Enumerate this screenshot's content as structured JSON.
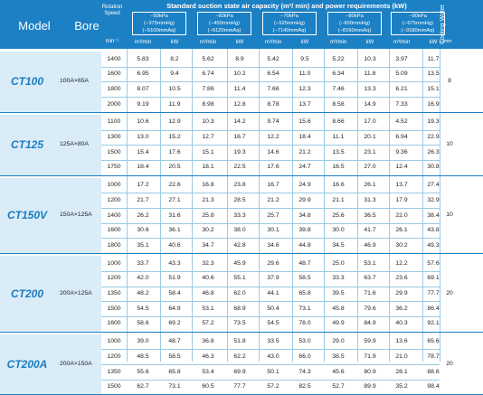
{
  "header": {
    "model": "Model",
    "bore": "Bore",
    "rotation_speed": "Rotation Speed",
    "speed_unit": "min⁻¹",
    "main_title": "Standard suction state air capacity  (m³/ min) and power requirements (kW)",
    "cooling_water": "Cooling Water",
    "cooling_unit": "L/min",
    "conditions": [
      {
        "kpa": "−50kPa",
        "mmhg": "(−375mmHg)",
        "mmaq": "(−5100mmAq)"
      },
      {
        "kpa": "−60kPa",
        "mmhg": "(−450mmHg)",
        "mmaq": "(−6120mmAq)"
      },
      {
        "kpa": "−70kPa",
        "mmhg": "(−525mmHg)",
        "mmaq": "(−7140mmAq)"
      },
      {
        "kpa": "−80kPa",
        "mmhg": "(−600mmHg)",
        "mmaq": "(−8160mmAq)"
      },
      {
        "kpa": "−90kPa",
        "mmhg": "(−675mmHg)",
        "mmaq": "(−9180mmAq)"
      }
    ],
    "sub_cap": "m³/min",
    "sub_kw": "kW"
  },
  "groups": [
    {
      "model": "CT100",
      "bore": "100A×65A",
      "cooling": "8",
      "rows": [
        {
          "speed": "1400",
          "values": [
            "5.83",
            "8.2",
            "5.62",
            "8.9",
            "5.42",
            "9.5",
            "5.22",
            "10.3",
            "3.97",
            "11.7"
          ]
        },
        {
          "speed": "1600",
          "values": [
            "6.95",
            "9.4",
            "6.74",
            "10.2",
            "6.54",
            "11.0",
            "6.34",
            "11.8",
            "5.09",
            "13.5"
          ]
        },
        {
          "speed": "1800",
          "values": [
            "8.07",
            "10.5",
            "7.86",
            "11.4",
            "7.66",
            "12.3",
            "7.46",
            "13.3",
            "6.21",
            "15.1"
          ]
        },
        {
          "speed": "2000",
          "values": [
            "9.19",
            "11.9",
            "8.98",
            "12.8",
            "8.78",
            "13.7",
            "8.58",
            "14.9",
            "7.33",
            "16.9"
          ]
        }
      ]
    },
    {
      "model": "CT125",
      "bore": "125A×80A",
      "cooling": "10",
      "rows": [
        {
          "speed": "1100",
          "values": [
            "10.6",
            "12.9",
            "10.3",
            "14.2",
            "9.74",
            "15.6",
            "8.66",
            "17.0",
            "4.52",
            "19.3"
          ]
        },
        {
          "speed": "1300",
          "values": [
            "13.0",
            "15.2",
            "12.7",
            "16.7",
            "12.2",
            "18.4",
            "11.1",
            "20.1",
            "6.94",
            "22.9"
          ]
        },
        {
          "speed": "1500",
          "values": [
            "15.4",
            "17.6",
            "15.1",
            "19.3",
            "14.6",
            "21.2",
            "13.5",
            "23.1",
            "9.36",
            "26.3"
          ]
        },
        {
          "speed": "1750",
          "values": [
            "18.4",
            "20.5",
            "18.1",
            "22.5",
            "17.6",
            "24.7",
            "16.5",
            "27.0",
            "12.4",
            "30.8"
          ]
        }
      ]
    },
    {
      "model": "CT150V",
      "bore": "150A×125A",
      "cooling": "10",
      "rows": [
        {
          "speed": "1000",
          "values": [
            "17.2",
            "22.6",
            "16.8",
            "23.8",
            "16.7",
            "24.9",
            "16.6",
            "26.1",
            "13.7",
            "27.4"
          ]
        },
        {
          "speed": "1200",
          "values": [
            "21.7",
            "27.1",
            "21.3",
            "28.5",
            "21.2",
            "29.9",
            "21.1",
            "31.3",
            "17.9",
            "32.9"
          ]
        },
        {
          "speed": "1400",
          "values": [
            "26.2",
            "31.6",
            "25.8",
            "33.3",
            "25.7",
            "34.8",
            "25.6",
            "36.5",
            "22.0",
            "38.4"
          ]
        },
        {
          "speed": "1600",
          "values": [
            "30.6",
            "36.1",
            "30.2",
            "38.0",
            "30.1",
            "39.8",
            "30.0",
            "41.7",
            "26.1",
            "43.8"
          ]
        },
        {
          "speed": "1800",
          "values": [
            "35.1",
            "40.6",
            "34.7",
            "42.8",
            "34.6",
            "44.8",
            "34.5",
            "46.9",
            "30.2",
            "49.3"
          ]
        }
      ]
    },
    {
      "model": "CT200",
      "bore": "200A×125A",
      "cooling": "20",
      "rows": [
        {
          "speed": "1000",
          "values": [
            "33.7",
            "43.3",
            "32.3",
            "45.9",
            "29.6",
            "48.7",
            "25.0",
            "53.1",
            "12.2",
            "57.6"
          ]
        },
        {
          "speed": "1200",
          "values": [
            "42.0",
            "51.9",
            "40.6",
            "55.1",
            "37.9",
            "58.5",
            "33.3",
            "63.7",
            "23.6",
            "69.1"
          ]
        },
        {
          "speed": "1350",
          "values": [
            "48.2",
            "58.4",
            "46.8",
            "62.0",
            "44.1",
            "65.8",
            "39.5",
            "71.6",
            "29.9",
            "77.7"
          ]
        },
        {
          "speed": "1500",
          "values": [
            "54.5",
            "64.9",
            "53.1",
            "68.9",
            "50.4",
            "73.1",
            "45.8",
            "79.6",
            "36.2",
            "86.4"
          ]
        },
        {
          "speed": "1600",
          "values": [
            "58.6",
            "69.2",
            "57.2",
            "73.5",
            "54.5",
            "78.0",
            "49.9",
            "84.9",
            "40.3",
            "92.1"
          ]
        }
      ]
    },
    {
      "model": "CT200A",
      "bore": "200A×150A",
      "cooling": "20",
      "rows": [
        {
          "speed": "1000",
          "values": [
            "39.0",
            "48.7",
            "36.8",
            "51.8",
            "33.5",
            "53.0",
            "29.0",
            "59.9",
            "13.6",
            "65.6"
          ]
        },
        {
          "speed": "1200",
          "values": [
            "48.5",
            "58.5",
            "46.3",
            "62.2",
            "43.0",
            "66.0",
            "38.5",
            "71.9",
            "21.0",
            "78.7"
          ]
        },
        {
          "speed": "1350",
          "values": [
            "55.6",
            "65.8",
            "53.4",
            "69.9",
            "50.1",
            "74.3",
            "45.6",
            "80.9",
            "28.1",
            "88.6"
          ]
        },
        {
          "speed": "1500",
          "values": [
            "62.7",
            "73.1",
            "60.5",
            "77.7",
            "57.2",
            "82.5",
            "52.7",
            "89.9",
            "35.2",
            "98.4"
          ]
        }
      ]
    }
  ]
}
